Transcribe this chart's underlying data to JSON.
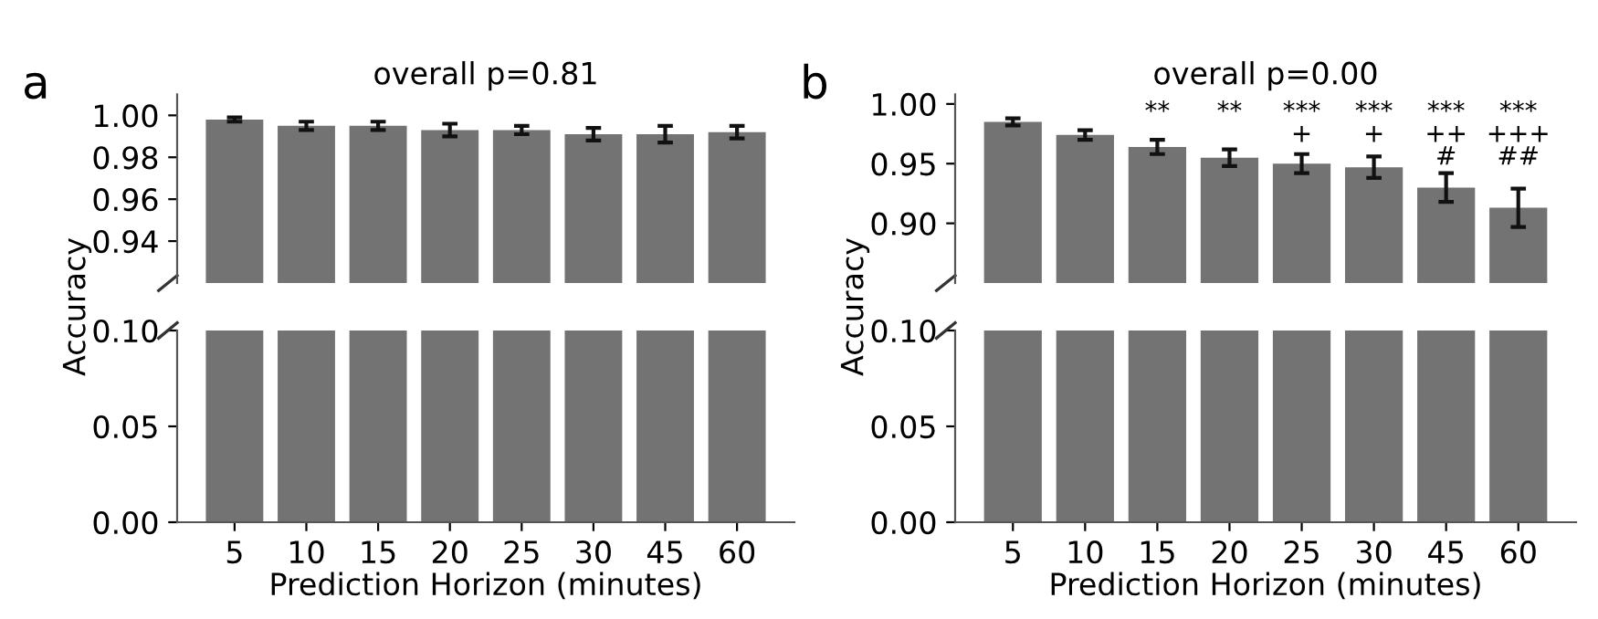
{
  "chart_data": [
    {
      "type": "bar",
      "title": "overall p=0.81",
      "tick_labels": "y",
      "categories": [
        "5",
        "10",
        "15",
        "20",
        "25",
        "30",
        "45",
        "60"
      ],
      "values": [
        0.998,
        0.995,
        0.995,
        0.993,
        0.993,
        0.991,
        0.991,
        0.992
      ],
      "errors": [
        0.001,
        0.002,
        0.002,
        0.003,
        0.002,
        0.003,
        0.004,
        0.003
      ],
      "color": "#737373",
      "ylim": [
        0.92,
        1.01
      ],
      "yticks": [
        0.94,
        0.96,
        0.98,
        {
          "value": 1.0,
          "label": "1.00"
        }
      ],
      "annotations": [
        "a"
      ]
    },
    {
      "type": "bar",
      "title": "overall p=0.00",
      "tick_labels": "y",
      "categories": [
        "5",
        "10",
        "15",
        "20",
        "25",
        "30",
        "45",
        "60"
      ],
      "values": [
        0.985,
        0.974,
        0.964,
        0.955,
        0.95,
        0.947,
        0.93,
        0.913
      ],
      "errors": [
        0.003,
        0.004,
        0.006,
        0.007,
        0.008,
        0.009,
        0.012,
        0.016
      ],
      "value_labels": [
        null,
        null,
        "**",
        "**",
        "***\n+",
        "***\n+",
        "***\n++\n#",
        "***\n+++\n##"
      ],
      "color": "#737373",
      "ylim": [
        0.85,
        1.008
      ],
      "yticks": [
        {
          "value": 0.9,
          "label": "0.90"
        },
        0.95,
        {
          "value": 1.0,
          "label": "1.00"
        }
      ],
      "annotations": [
        "b"
      ]
    },
    {
      "type": "bar",
      "xlabel": "Prediction Horizon (minutes)",
      "ylabel": "Accuracy",
      "categories": [
        "5",
        "10",
        "15",
        "20",
        "25",
        "30",
        "45",
        "60"
      ],
      "values": [
        0.1,
        0.1,
        0.1,
        0.1,
        0.1,
        0.1,
        0.1,
        0.1
      ],
      "color": "#737373",
      "ylim": [
        0,
        0.1
      ],
      "yticks": [
        {
          "value": 0,
          "label": "0.00"
        },
        0.05,
        {
          "value": 0.1,
          "label": "0.10"
        }
      ]
    },
    {
      "type": "bar",
      "xlabel": "Prediction Horizon (minutes)",
      "ylabel": "Accuracy",
      "categories": [
        "5",
        "10",
        "15",
        "20",
        "25",
        "30",
        "45",
        "60"
      ],
      "values": [
        0.1,
        0.1,
        0.1,
        0.1,
        0.1,
        0.1,
        0.1,
        0.1
      ],
      "color": "#737373",
      "ylim": [
        0,
        0.1
      ],
      "yticks": [
        {
          "value": 0,
          "label": "0.00"
        },
        0.05,
        {
          "value": 0.1,
          "label": "0.10"
        }
      ]
    }
  ]
}
